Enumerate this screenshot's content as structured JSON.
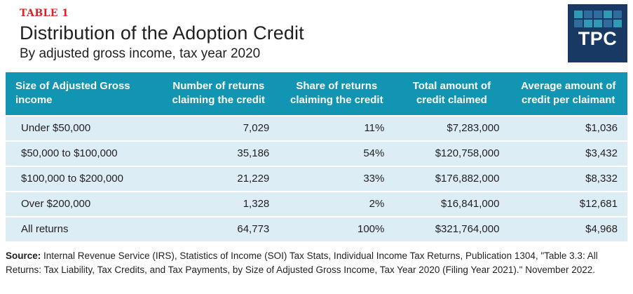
{
  "header": {
    "table_label": "TABLE 1",
    "title": "Distribution of the Adoption Credit",
    "subtitle": "By adjusted gross income, tax year 2020"
  },
  "logo": {
    "text": "TPC",
    "bg_color": "#173963",
    "square_colors": [
      "#2e9ab6",
      "#2e6d9e",
      "#2e6d9e",
      "#2e9ab6",
      "#2e6d9e",
      "#2e6d9e",
      "#2e9ab6",
      "#2e9ab6",
      "#2e6d9e",
      "#2e9ab6"
    ]
  },
  "colors": {
    "accent_red": "#e11f26",
    "header_teal": "#1295b2",
    "row_blue": "#dcedf6",
    "text": "#231f20",
    "logo_navy": "#173963"
  },
  "chart_data": {
    "type": "table",
    "title": "Distribution of the Adoption Credit",
    "subtitle": "By adjusted gross income, tax year 2020",
    "columns": [
      "Size of Adjusted Gross income",
      "Number of returns claiming the credit",
      "Share of returns claiming the credit",
      "Total amount of credit claimed",
      "Average amount of credit per claimant"
    ],
    "rows": [
      [
        "Under $50,000",
        "7,029",
        "11%",
        "$7,283,000",
        "$1,036"
      ],
      [
        "$50,000 to $100,000",
        "35,186",
        "54%",
        "$120,758,000",
        "$3,432"
      ],
      [
        "$100,000 to $200,000",
        "21,229",
        "33%",
        "$176,882,000",
        "$8,332"
      ],
      [
        "Over $200,000",
        "1,328",
        "2%",
        "$16,841,000",
        "$12,681"
      ],
      [
        "All returns",
        "64,773",
        "100%",
        "$321,764,000",
        "$4,968"
      ]
    ]
  },
  "source": {
    "label": "Source:",
    "text": "Internal Revenue Service (IRS), Statistics of Income (SOI) Tax Stats, Individual Income Tax Returns, Publication 1304, \"Table 3.3: All Returns: Tax Liability, Tax Credits, and Tax Payments, by Size of Adjusted Gross Income, Tax Year 2020 (Filing Year 2021).\" November 2022."
  }
}
